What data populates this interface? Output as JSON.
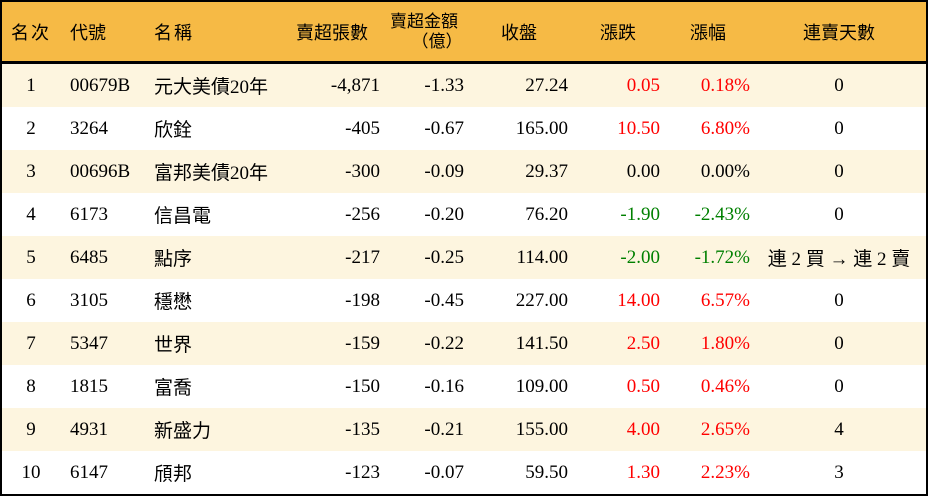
{
  "colors": {
    "header_bg": "#F6BA45",
    "row_odd_bg": "#FDF5DF",
    "row_even_bg": "#FFFFFF",
    "up_red": "#FF0000",
    "down_green": "#008000",
    "flat_black": "#000000",
    "border": "#000000"
  },
  "table": {
    "columns": {
      "rank": "名次",
      "code": "代號",
      "name": "名稱",
      "sell_volume": "賣超張數",
      "sell_amount_line1": "賣超金額",
      "sell_amount_line2": "（億）",
      "close": "收盤",
      "change": "漲跌",
      "change_pct": "漲幅",
      "streak": "連賣天數"
    },
    "rows": [
      {
        "rank": "1",
        "code": "00679B",
        "name": "元大美債20年",
        "sell_volume": "-4,871",
        "sell_amount": "-1.33",
        "close": "27.24",
        "change": "0.05",
        "change_pct": "0.18%",
        "streak": "0",
        "trend": "up"
      },
      {
        "rank": "2",
        "code": "3264",
        "name": "欣銓",
        "sell_volume": "-405",
        "sell_amount": "-0.67",
        "close": "165.00",
        "change": "10.50",
        "change_pct": "6.80%",
        "streak": "0",
        "trend": "up"
      },
      {
        "rank": "3",
        "code": "00696B",
        "name": "富邦美債20年",
        "sell_volume": "-300",
        "sell_amount": "-0.09",
        "close": "29.37",
        "change": "0.00",
        "change_pct": "0.00%",
        "streak": "0",
        "trend": "flat"
      },
      {
        "rank": "4",
        "code": "6173",
        "name": "信昌電",
        "sell_volume": "-256",
        "sell_amount": "-0.20",
        "close": "76.20",
        "change": "-1.90",
        "change_pct": "-2.43%",
        "streak": "0",
        "trend": "down"
      },
      {
        "rank": "5",
        "code": "6485",
        "name": "點序",
        "sell_volume": "-217",
        "sell_amount": "-0.25",
        "close": "114.00",
        "change": "-2.00",
        "change_pct": "-1.72%",
        "streak": "連 2 買 → 連 2 賣",
        "trend": "down"
      },
      {
        "rank": "6",
        "code": "3105",
        "name": "穩懋",
        "sell_volume": "-198",
        "sell_amount": "-0.45",
        "close": "227.00",
        "change": "14.00",
        "change_pct": "6.57%",
        "streak": "0",
        "trend": "up"
      },
      {
        "rank": "7",
        "code": "5347",
        "name": "世界",
        "sell_volume": "-159",
        "sell_amount": "-0.22",
        "close": "141.50",
        "change": "2.50",
        "change_pct": "1.80%",
        "streak": "0",
        "trend": "up"
      },
      {
        "rank": "8",
        "code": "1815",
        "name": "富喬",
        "sell_volume": "-150",
        "sell_amount": "-0.16",
        "close": "109.00",
        "change": "0.50",
        "change_pct": "0.46%",
        "streak": "0",
        "trend": "up"
      },
      {
        "rank": "9",
        "code": "4931",
        "name": "新盛力",
        "sell_volume": "-135",
        "sell_amount": "-0.21",
        "close": "155.00",
        "change": "4.00",
        "change_pct": "2.65%",
        "streak": "4",
        "trend": "up"
      },
      {
        "rank": "10",
        "code": "6147",
        "name": "頎邦",
        "sell_volume": "-123",
        "sell_amount": "-0.07",
        "close": "59.50",
        "change": "1.30",
        "change_pct": "2.23%",
        "streak": "3",
        "trend": "up"
      }
    ]
  }
}
